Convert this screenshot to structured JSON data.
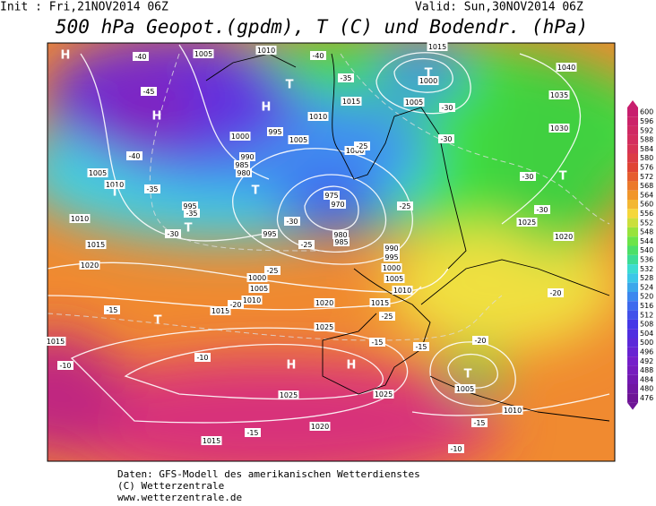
{
  "header": {
    "init": "Init : Fri,21NOV2014 06Z",
    "valid": "Valid: Sun,30NOV2014 06Z",
    "title": "500 hPa Geopot.(gpdm), T (C) und Bodendr. (hPa)"
  },
  "map": {
    "centers": [
      "H",
      "H",
      "T",
      "T",
      "T",
      "T",
      "H",
      "T",
      "T",
      "T",
      "H",
      "H",
      "T"
    ],
    "isobars": [
      "1005",
      "1010",
      "1015",
      "1040",
      "1035",
      "1030",
      "1000",
      "1005",
      "1015",
      "1010",
      "995",
      "1005",
      "1000",
      "1000",
      "990",
      "985",
      "980",
      "975",
      "970",
      "980",
      "985",
      "995",
      "995",
      "990",
      "995",
      "1000",
      "1005",
      "1010",
      "1015",
      "1020",
      "1025",
      "1000",
      "1005",
      "1010",
      "1015",
      "1020",
      "1015",
      "1010",
      "1010",
      "1025",
      "1020",
      "1025",
      "1025",
      "1020",
      "1015",
      "1010",
      "1005",
      "1015",
      "1005"
    ],
    "temperatures": [
      "-40",
      "-45",
      "-40",
      "-35",
      "-35",
      "-30",
      "-25",
      "-20",
      "-15",
      "-10",
      "-10",
      "-15",
      "-15",
      "-20",
      "-15",
      "-10",
      "-15",
      "-30",
      "-25",
      "-25",
      "-30",
      "-30",
      "-35",
      "-40",
      "-25",
      "-30",
      "-30",
      "-20",
      "-25"
    ]
  },
  "legend": {
    "levels": [
      600,
      596,
      592,
      588,
      584,
      580,
      576,
      572,
      568,
      564,
      560,
      556,
      552,
      548,
      544,
      540,
      536,
      532,
      528,
      524,
      520,
      516,
      512,
      508,
      504,
      500,
      496,
      492,
      488,
      484,
      480,
      476
    ]
  },
  "footer": {
    "line1": "Daten: GFS-Modell des amerikanischen Wetterdienstes",
    "line2": "(C) Wetterzentrale",
    "line3": "www.wetterzentrale.de"
  }
}
